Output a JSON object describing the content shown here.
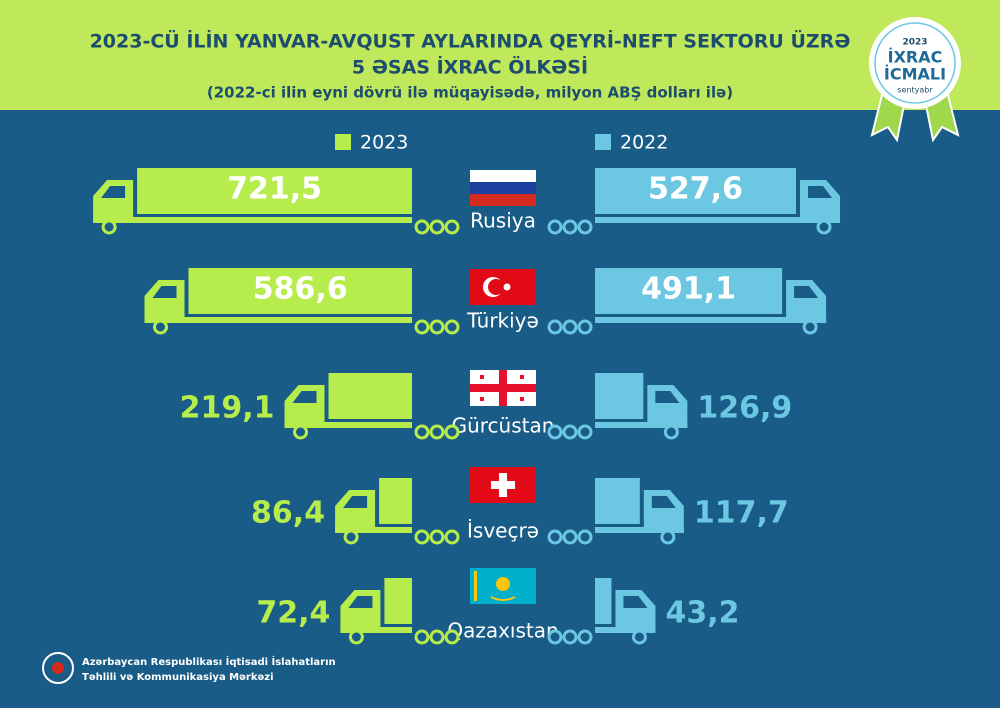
{
  "chart_data": {
    "type": "truck-bar",
    "title": [
      "2023-CÜ İLİN YANVAR-AVQUST AYLARINDA QEYRİ-NEFT SEKTORU ÜZRƏ",
      "5 ƏSAS İXRAC ÖLKƏSİ"
    ],
    "subtitle": "(2022-ci ilin eyni dövrü ilə müqayisədə, milyon ABŞ dolları ilə)",
    "categories": [
      "Rusiya",
      "Türkiyə",
      "Gürcüstan",
      "İsveçrə",
      "Qazaxıstan"
    ],
    "series": [
      {
        "name": "2023",
        "color": "#b6ec4c",
        "values": [
          721.5,
          586.6,
          219.1,
          86.4,
          72.4
        ],
        "value_labels": [
          "721,5",
          "586,6",
          "219,1",
          "86,4",
          "72,4"
        ]
      },
      {
        "name": "2022",
        "color": "#6cc8e2",
        "values": [
          527.6,
          491.1,
          126.9,
          117.7,
          43.2
        ],
        "value_labels": [
          "527,6",
          "491,1",
          "126,9",
          "117,7",
          "43,2"
        ]
      }
    ]
  },
  "badge": {
    "year": "2023",
    "line1": "İXRAC",
    "line2": "İCMALI",
    "month": "sentyabr"
  },
  "footer": [
    "Azərbaycan Respublikası İqtisadi İslahatların",
    "Təhlili və Kommunikasiya Mərkəzi"
  ]
}
